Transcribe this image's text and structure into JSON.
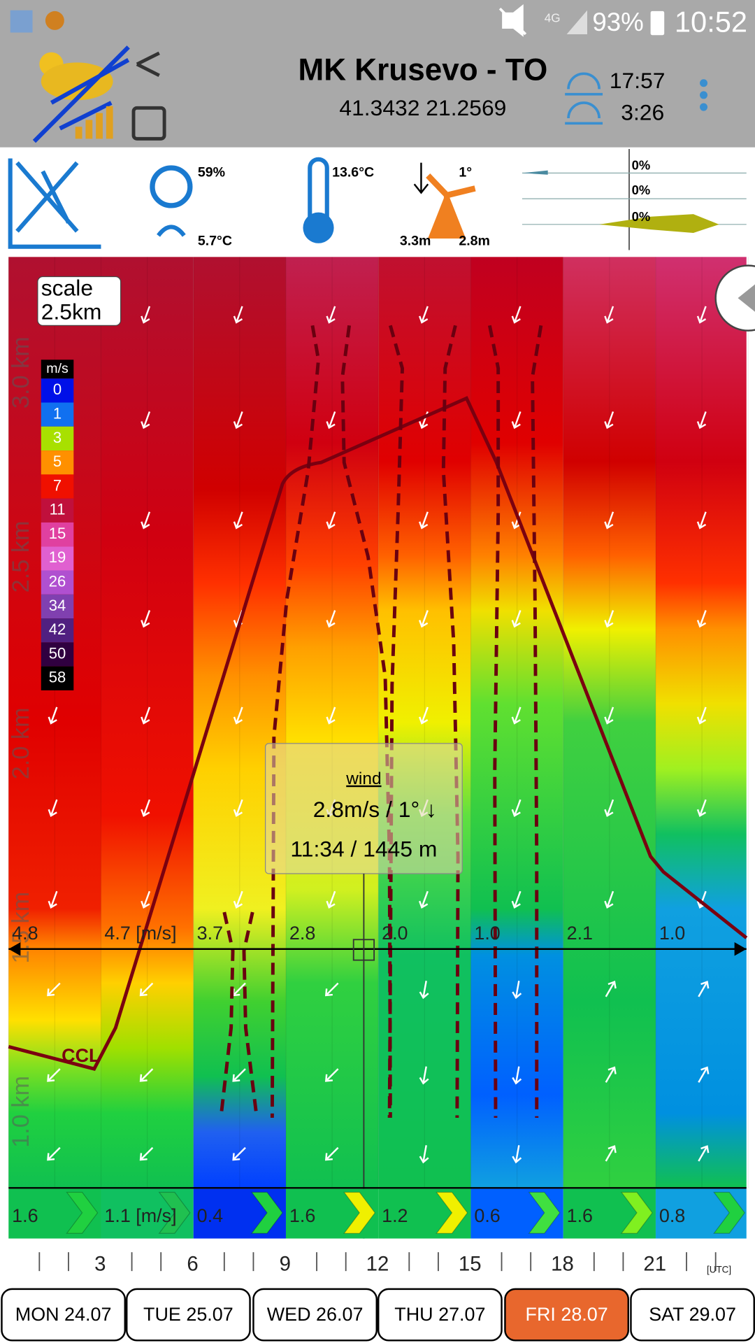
{
  "status_bar": {
    "network": "4G",
    "battery": "93%",
    "time": "10:52"
  },
  "header": {
    "title": "MK Krusevo - TO",
    "coordinates": "41.3432 21.2569",
    "sunset": "17:57",
    "sunrise": "3:26"
  },
  "info": {
    "humidity": "59%",
    "dew_point": "5.7°C",
    "temperature": "13.6°C",
    "wind_direction": "1°",
    "wind_low": "3.3m",
    "wind_high": "2.8m",
    "precipitation": [
      "0%",
      "0%",
      "0%"
    ]
  },
  "chart": {
    "scale_label": "scale",
    "scale_value": "2.5km",
    "legend_unit": "m/s",
    "legend": [
      {
        "label": "0",
        "color": "#0010e8"
      },
      {
        "label": "1",
        "color": "#1070f0"
      },
      {
        "label": "3",
        "color": "#a8e000"
      },
      {
        "label": "5",
        "color": "#ff9000"
      },
      {
        "label": "7",
        "color": "#f01000"
      },
      {
        "label": "11",
        "color": "#c0103c"
      },
      {
        "label": "15",
        "color": "#e040a0"
      },
      {
        "label": "19",
        "color": "#e060d0"
      },
      {
        "label": "26",
        "color": "#b050d0"
      },
      {
        "label": "34",
        "color": "#8040b0"
      },
      {
        "label": "42",
        "color": "#502080"
      },
      {
        "label": "50",
        "color": "#300040"
      },
      {
        "label": "58",
        "color": "#000000"
      }
    ],
    "altitude_labels": [
      "3.0 km",
      "2.5 km",
      "2.0 km",
      "1.5 km",
      "1.0 km"
    ],
    "thermal_row": [
      "4.8",
      "4.7 [m/s]",
      "3.7",
      "2.8",
      "2.0",
      "1.0",
      "2.1",
      "1.0"
    ],
    "surface_row": [
      {
        "label": "1.6",
        "color": "#10c050",
        "chevron": "#20d040"
      },
      {
        "label": "1.1 [m/s]",
        "color": "#10c060",
        "chevron": "#20c050"
      },
      {
        "label": "0.4",
        "color": "#0030f0",
        "chevron": "#20d040"
      },
      {
        "label": "1.6",
        "color": "#10c050",
        "chevron": "#f0f000"
      },
      {
        "label": "1.2",
        "color": "#10c050",
        "chevron": "#f0f000"
      },
      {
        "label": "0.6",
        "color": "#0060ff",
        "chevron": "#40e040"
      },
      {
        "label": "1.6",
        "color": "#10c050",
        "chevron": "#80f020"
      },
      {
        "label": "0.8",
        "color": "#10a0e0",
        "chevron": "#20d040"
      }
    ],
    "ccl_label": "CCL",
    "tooltip": {
      "title": "wind",
      "wind": "2.8m/s / 1° ↓",
      "time_altitude": "11:34 / 1445 m"
    }
  },
  "hours": [
    "3",
    "6",
    "9",
    "12",
    "15",
    "18",
    "21",
    "[UTC]"
  ],
  "days": [
    "MON 24.07",
    "TUE 25.07",
    "WED 26.07",
    "THU 27.07",
    "FRI 28.07",
    "SAT 29.07"
  ],
  "selected_day": "FRI 28.07"
}
